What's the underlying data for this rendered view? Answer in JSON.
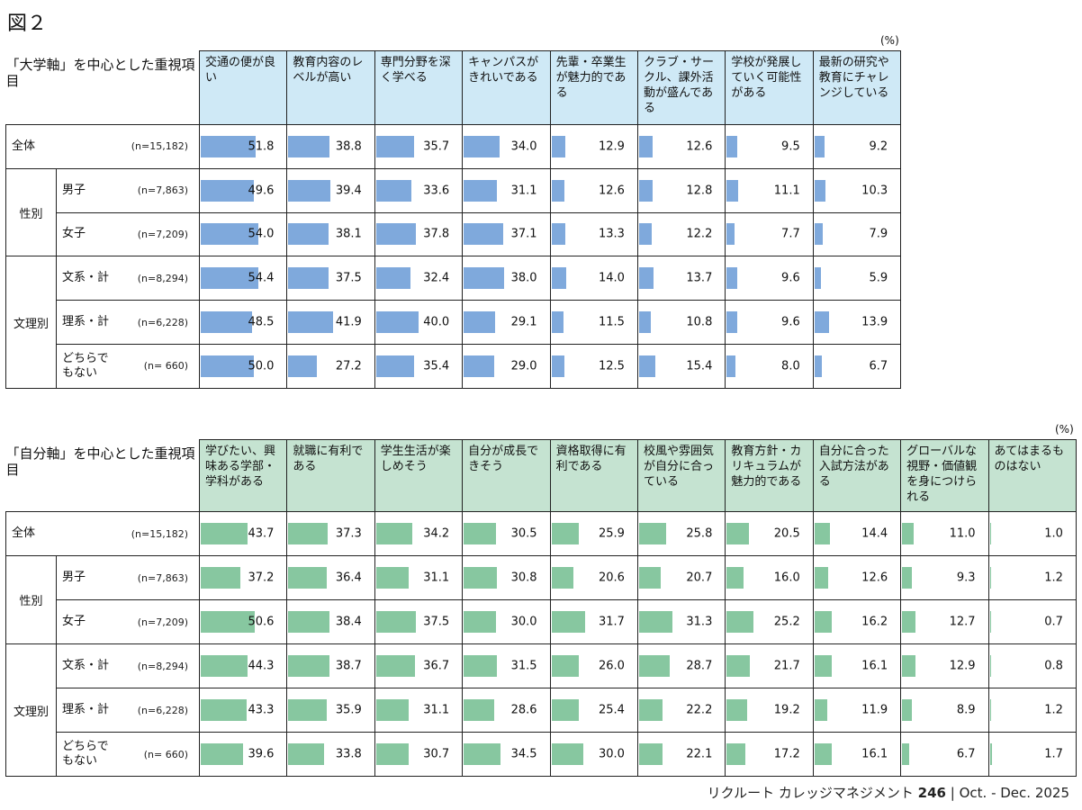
{
  "figure_title": "図２",
  "unit": "(%)",
  "row_labels": [
    {
      "group": "",
      "name": "全体",
      "n": "(n=15,182)"
    },
    {
      "group": "性別",
      "name": "男子",
      "n": "(n=7,863)"
    },
    {
      "group": "性別",
      "name": "女子",
      "n": "(n=7,209)"
    },
    {
      "group": "文理別",
      "name": "文系・計",
      "n": "(n=8,294)"
    },
    {
      "group": "文理別",
      "name": "理系・計",
      "n": "(n=6,228)"
    },
    {
      "group": "文理別",
      "name": "どちらでもない",
      "n": "(n= 660)"
    }
  ],
  "groups": {
    "gender": "性別",
    "bunri": "文理別"
  },
  "footer": {
    "text": "リクルート カレッジマネジメント",
    "issue": "246",
    "sep": "|",
    "date": "Oct. - Dec. 2025"
  },
  "colors": {
    "bar1": "#7fa9dc",
    "header1": "#cfe9f6",
    "bar2": "#87c7a0",
    "header2": "#c5e3d1"
  },
  "chart_data": [
    {
      "type": "bar",
      "title": "「大学軸」を中心とした重視項目",
      "categories": [
        "交通の便が良い",
        "教育内容のレベルが高い",
        "専門分野を深く学べる",
        "キャンパスがきれいである",
        "先輩・卒業生が魅力的である",
        "クラブ・サークル、課外活動が盛んである",
        "学校が発展していく可能性がある",
        "最新の研究や教育にチャレンジしている"
      ],
      "series": [
        {
          "name": "全体",
          "values": [
            51.8,
            38.8,
            35.7,
            34.0,
            12.9,
            12.6,
            9.5,
            9.2
          ]
        },
        {
          "name": "男子",
          "values": [
            49.6,
            39.4,
            33.6,
            31.1,
            12.6,
            12.8,
            11.1,
            10.3
          ]
        },
        {
          "name": "女子",
          "values": [
            54.0,
            38.1,
            37.8,
            37.1,
            13.3,
            12.2,
            7.7,
            7.9
          ]
        },
        {
          "name": "文系・計",
          "values": [
            54.4,
            37.5,
            32.4,
            38.0,
            14.0,
            13.7,
            9.6,
            5.9
          ]
        },
        {
          "name": "理系・計",
          "values": [
            48.5,
            41.9,
            40.0,
            29.1,
            11.5,
            10.8,
            9.6,
            13.9
          ]
        },
        {
          "name": "どちらでもない",
          "values": [
            50.0,
            27.2,
            35.4,
            29.0,
            12.5,
            15.4,
            8.0,
            6.7
          ]
        }
      ],
      "ylim": [
        0,
        100
      ]
    },
    {
      "type": "bar",
      "title": "「自分軸」を中心とした重視項目",
      "categories": [
        "学びたい、興味ある学部・学科がある",
        "就職に有利である",
        "学生生活が楽しめそう",
        "自分が成長できそう",
        "資格取得に有利である",
        "校風や雰囲気が自分に合っている",
        "教育方針・カリキュラムが魅力的である",
        "自分に合った入試方法がある",
        "グローバルな視野・価値観を身につけられる",
        "あてはまるものはない"
      ],
      "series": [
        {
          "name": "全体",
          "values": [
            43.7,
            37.3,
            34.2,
            30.5,
            25.9,
            25.8,
            20.5,
            14.4,
            11.0,
            1.0
          ]
        },
        {
          "name": "男子",
          "values": [
            37.2,
            36.4,
            31.1,
            30.8,
            20.6,
            20.7,
            16.0,
            12.6,
            9.3,
            1.2
          ]
        },
        {
          "name": "女子",
          "values": [
            50.6,
            38.4,
            37.5,
            30.0,
            31.7,
            31.3,
            25.2,
            16.2,
            12.7,
            0.7
          ]
        },
        {
          "name": "文系・計",
          "values": [
            44.3,
            38.7,
            36.7,
            31.5,
            26.0,
            28.7,
            21.7,
            16.1,
            12.9,
            0.8
          ]
        },
        {
          "name": "理系・計",
          "values": [
            43.3,
            35.9,
            31.1,
            28.6,
            25.4,
            22.2,
            19.2,
            11.9,
            8.9,
            1.2
          ]
        },
        {
          "name": "どちらでもない",
          "values": [
            39.6,
            33.8,
            30.7,
            34.5,
            30.0,
            22.1,
            17.2,
            16.1,
            6.7,
            1.7
          ]
        }
      ],
      "ylim": [
        0,
        100
      ]
    }
  ]
}
